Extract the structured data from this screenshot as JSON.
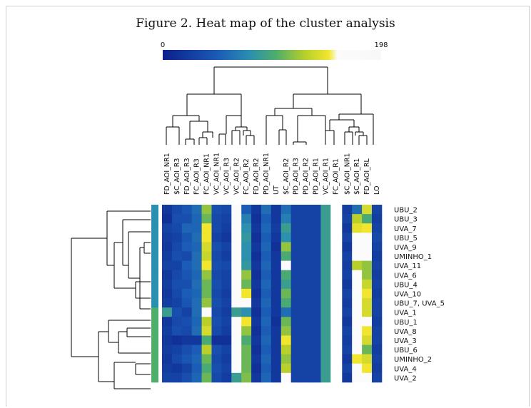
{
  "page": {
    "title": "Figure 2. Heat map of the cluster analysis"
  },
  "chart_data": {
    "type": "heatmap",
    "title": "Figure 2. Heat map of the cluster analysis",
    "color_scale": {
      "min": 0,
      "max": 198,
      "min_label": "0",
      "max_label": "198",
      "colors": [
        "#0d1f8c",
        "#1a5bb6",
        "#2b8fb0",
        "#4fae6a",
        "#b6cf2a",
        "#f2e62e",
        "#fbfbfb"
      ]
    },
    "columns": [
      "FD_AOI_NR1",
      "$C_AOI_R3",
      "FD_AOI_R3",
      "FC_AOI_R3",
      "FC_AOI_NR1",
      "VC_AOI_NR1",
      "VC_AOI_R3",
      "VC_AOI_R2",
      "FC_AOI_R2",
      "FD_AOI_R2",
      "PD_AOI_NR1",
      "UT",
      "$C_AOI_R2",
      "PD_AOI_R3",
      "PD_AOI_R2",
      "PD_AOI_R1",
      "VC_AOI_R1",
      "FC_AOI_R1",
      "$C_AOI_NR1",
      "$C_AOI_R1",
      "FD_AOI_RL",
      "LO"
    ],
    "rows": [
      "UBU_2",
      "UBU_3",
      "UVA_7",
      "UBU_5",
      "UVA_9",
      "UMINHO_1",
      "UVA_11",
      "UVA_6",
      "UBU_4",
      "UVA_10",
      "UBU_7, UVA_5",
      "UVA_1",
      "UBU_1",
      "UVA_8",
      "UVA_3",
      "UBU_6",
      "UMINHO_2",
      "UVA_4",
      "UVA_2"
    ],
    "values": [
      [
        20,
        35,
        45,
        60,
        120,
        40,
        35,
        198,
        50,
        20,
        60,
        20,
        60,
        30,
        30,
        30,
        90,
        198,
        25,
        60,
        140,
        30
      ],
      [
        15,
        40,
        40,
        55,
        110,
        35,
        30,
        198,
        70,
        15,
        50,
        20,
        70,
        30,
        30,
        30,
        90,
        198,
        30,
        130,
        100,
        25
      ],
      [
        30,
        35,
        55,
        55,
        150,
        35,
        25,
        165,
        80,
        20,
        55,
        25,
        90,
        30,
        30,
        30,
        90,
        198,
        20,
        145,
        150,
        30
      ],
      [
        25,
        30,
        45,
        60,
        150,
        30,
        20,
        182,
        85,
        15,
        50,
        20,
        80,
        30,
        30,
        30,
        90,
        198,
        30,
        170,
        165,
        35
      ],
      [
        20,
        35,
        50,
        55,
        140,
        40,
        30,
        190,
        80,
        20,
        55,
        15,
        120,
        30,
        30,
        30,
        90,
        198,
        20,
        182,
        160,
        30
      ],
      [
        25,
        40,
        35,
        60,
        135,
        35,
        25,
        198,
        80,
        15,
        50,
        20,
        100,
        30,
        30,
        30,
        90,
        198,
        30,
        190,
        160,
        25
      ],
      [
        30,
        30,
        50,
        60,
        150,
        40,
        35,
        198,
        85,
        20,
        55,
        20,
        160,
        30,
        30,
        30,
        90,
        198,
        25,
        130,
        120,
        30
      ],
      [
        20,
        35,
        45,
        55,
        120,
        35,
        30,
        180,
        120,
        15,
        50,
        20,
        100,
        30,
        30,
        30,
        90,
        198,
        30,
        198,
        120,
        25
      ],
      [
        25,
        40,
        40,
        60,
        110,
        40,
        30,
        198,
        110,
        20,
        55,
        20,
        90,
        30,
        30,
        30,
        90,
        198,
        20,
        198,
        135,
        30
      ],
      [
        20,
        35,
        50,
        55,
        110,
        35,
        25,
        198,
        150,
        15,
        50,
        20,
        110,
        30,
        30,
        30,
        90,
        198,
        30,
        198,
        150,
        25
      ],
      [
        25,
        30,
        45,
        60,
        120,
        40,
        30,
        198,
        165,
        20,
        55,
        20,
        100,
        30,
        30,
        30,
        90,
        198,
        25,
        198,
        140,
        30
      ],
      [
        90,
        40,
        30,
        60,
        165,
        35,
        25,
        90,
        80,
        15,
        50,
        20,
        60,
        30,
        30,
        30,
        90,
        198,
        30,
        198,
        140,
        30
      ],
      [
        20,
        35,
        40,
        55,
        130,
        40,
        30,
        198,
        150,
        20,
        55,
        15,
        110,
        30,
        30,
        30,
        90,
        198,
        20,
        198,
        160,
        25
      ],
      [
        25,
        40,
        35,
        60,
        140,
        35,
        25,
        198,
        120,
        15,
        50,
        20,
        120,
        30,
        30,
        30,
        90,
        198,
        30,
        198,
        150,
        30
      ],
      [
        20,
        15,
        20,
        20,
        100,
        15,
        15,
        198,
        100,
        20,
        55,
        20,
        150,
        30,
        30,
        30,
        90,
        198,
        25,
        198,
        140,
        30
      ],
      [
        25,
        30,
        40,
        50,
        130,
        40,
        30,
        198,
        110,
        15,
        50,
        20,
        130,
        30,
        30,
        30,
        90,
        198,
        30,
        198,
        110,
        25
      ],
      [
        20,
        35,
        45,
        55,
        110,
        35,
        25,
        198,
        110,
        20,
        55,
        20,
        120,
        30,
        30,
        30,
        90,
        198,
        20,
        150,
        140,
        30
      ],
      [
        25,
        20,
        30,
        50,
        100,
        40,
        30,
        198,
        110,
        15,
        50,
        20,
        130,
        30,
        30,
        30,
        90,
        198,
        30,
        190,
        150,
        25
      ],
      [
        30,
        30,
        40,
        55,
        110,
        35,
        25,
        90,
        115,
        20,
        55,
        20,
        175,
        30,
        30,
        30,
        90,
        198,
        20,
        198,
        190,
        30
      ]
    ]
  }
}
